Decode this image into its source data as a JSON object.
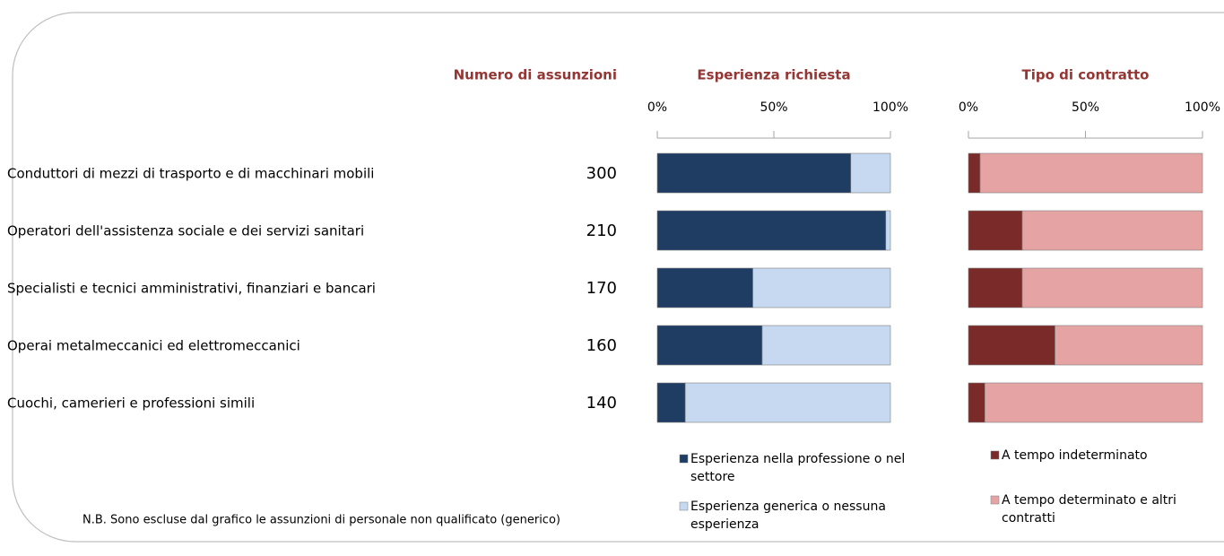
{
  "hires": {
    "title": "Numero di assunzioni",
    "categories": [
      "Conduttori di mezzi di trasporto e di macchinari mobili",
      "Operatori dell'assistenza sociale e dei servizi sanitari",
      "Specialisti e tecnici amministrativi, finanziari e bancari",
      "Operai metalmeccanici ed elettromeccanici",
      "Cuochi, camerieri e professioni simili"
    ],
    "values": [
      300,
      210,
      170,
      160,
      140
    ]
  },
  "note": "N.B. Sono escluse dal grafico le assunzioni di personale non qualificato (generico)",
  "chart_data": [
    {
      "type": "bar",
      "stacked": true,
      "orientation": "horizontal",
      "title": "Esperienza richiesta",
      "xlim": [
        0,
        100
      ],
      "xticks": [
        {
          "value": 0,
          "label": "0%"
        },
        {
          "value": 50,
          "label": "50%"
        },
        {
          "value": 100,
          "label": "100%"
        }
      ],
      "series": [
        {
          "name": "Esperienza nella professione o nel settore",
          "color": "#1f3d63",
          "values": [
            83,
            98,
            41,
            45,
            12
          ]
        },
        {
          "name": "Esperienza generica o nessuna esperienza",
          "color": "#c6d9f1",
          "values": [
            17,
            2,
            59,
            55,
            88
          ]
        }
      ]
    },
    {
      "type": "bar",
      "stacked": true,
      "orientation": "horizontal",
      "title": "Tipo di contratto",
      "xlim": [
        0,
        100
      ],
      "xticks": [
        {
          "value": 0,
          "label": "0%"
        },
        {
          "value": 50,
          "label": "50%"
        },
        {
          "value": 100,
          "label": "100%"
        }
      ],
      "series": [
        {
          "name": "A tempo indeterminato",
          "color": "#7b2a2a",
          "values": [
            5,
            23,
            23,
            37,
            7
          ]
        },
        {
          "name": "A tempo determinato e altri contratti",
          "color": "#e6a3a3",
          "values": [
            95,
            77,
            77,
            63,
            93
          ]
        }
      ]
    }
  ]
}
